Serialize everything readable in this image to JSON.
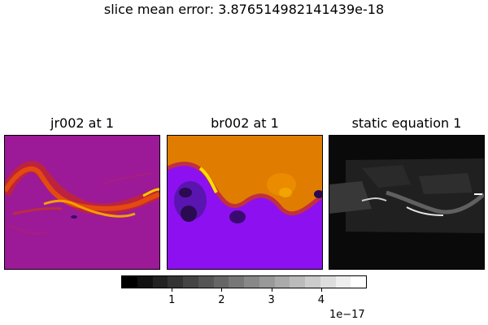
{
  "suptitle": "slice mean error: 3.876514982141439e-18",
  "panels": [
    {
      "title": "jr002 at 1",
      "colormap": "gnuplot",
      "background": "#a0189a"
    },
    {
      "title": "br002 at 1",
      "colormap": "gnuplot",
      "background": "#e07d00"
    },
    {
      "title": "static equation 1",
      "colormap": "gray",
      "background": "#0a0a0a"
    }
  ],
  "chart_data": {
    "type": "heatmap",
    "title": "slice mean error: 3.876514982141439e-18",
    "subplots": [
      "jr002 at 1",
      "br002 at 1",
      "static equation 1"
    ],
    "colorbar": {
      "colormap": "gray",
      "levels": 16,
      "ticks": [
        1,
        2,
        3,
        4
      ],
      "tick_labels": [
        "1",
        "2",
        "3",
        "4"
      ],
      "range": [
        0,
        4.9
      ],
      "offset_label": "1e−17"
    }
  }
}
